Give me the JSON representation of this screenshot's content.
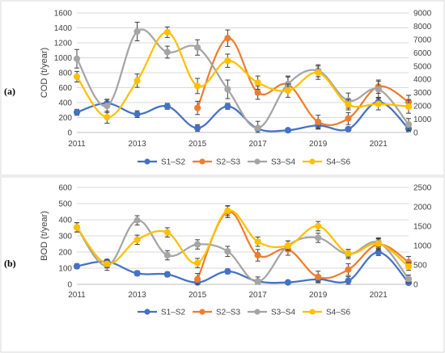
{
  "chart_data": [
    {
      "type": "line",
      "panel_label": "(a)",
      "ylabel": "COD (t/year)",
      "ylim_left": [
        0,
        1600
      ],
      "yticks_left": [
        0,
        200,
        400,
        600,
        800,
        1000,
        1200,
        1400,
        1600
      ],
      "ylim_right": [
        0,
        9000
      ],
      "yticks_right": [
        0,
        1000,
        2000,
        3000,
        4000,
        5000,
        6000,
        7000,
        8000,
        9000
      ],
      "x": [
        2011,
        2012,
        2013,
        2014,
        2015,
        2016,
        2017,
        2018,
        2019,
        2020,
        2021,
        2022
      ],
      "xticks": [
        2011,
        2013,
        2015,
        2017,
        2019,
        2021
      ],
      "grid": "horizontal",
      "legend_position": "bottom",
      "series": [
        {
          "name": "S1–S2",
          "color": "#4472C4",
          "axis": "left",
          "x": [
            2011,
            2012,
            2013,
            2014,
            2015,
            2016,
            2017,
            2018,
            2019,
            2020,
            2021,
            2022
          ],
          "values": [
            270,
            390,
            245,
            350,
            60,
            350,
            50,
            30,
            95,
            45,
            410,
            50
          ],
          "errors": [
            40,
            50,
            45,
            40,
            45,
            40,
            25,
            20,
            50,
            30,
            50,
            40
          ]
        },
        {
          "name": "S2–S3",
          "color": "#ED7D31",
          "axis": "right",
          "x": [
            2015,
            2016,
            2017,
            2018,
            2019,
            2020,
            2021,
            2022
          ],
          "values": [
            1850,
            7100,
            3000,
            3600,
            800,
            1050,
            3450,
            2300
          ],
          "errors": [
            500,
            620,
            500,
            580,
            500,
            450,
            500,
            500
          ]
        },
        {
          "name": "S3–S4",
          "color": "#A5A5A5",
          "axis": "right",
          "x": [
            2011,
            2012,
            2013,
            2014,
            2015,
            2016,
            2017,
            2018,
            2019,
            2020,
            2021,
            2022
          ],
          "values": [
            5550,
            2000,
            7600,
            6050,
            6400,
            3250,
            340,
            3650,
            4650,
            2400,
            3250,
            600
          ],
          "errors": [
            700,
            500,
            700,
            450,
            580,
            700,
            500,
            600,
            450,
            570,
            600,
            450
          ]
        },
        {
          "name": "S4–S6",
          "color": "#FFC000",
          "axis": "right",
          "x": [
            2011,
            2012,
            2013,
            2014,
            2015,
            2016,
            2017,
            2018,
            2019,
            2020,
            2021,
            2022
          ],
          "values": [
            4200,
            1150,
            3900,
            7550,
            3500,
            5400,
            3750,
            3150,
            4500,
            2100,
            2150,
            1950
          ],
          "errors": [
            400,
            450,
            500,
            400,
            570,
            500,
            500,
            500,
            500,
            400,
            450,
            500
          ]
        }
      ]
    },
    {
      "type": "line",
      "panel_label": "(b)",
      "ylabel": "BOD (t/year)",
      "ylim_left": [
        0,
        600
      ],
      "yticks_left": [
        0,
        100,
        200,
        300,
        400,
        500,
        600
      ],
      "ylim_right": [
        0,
        2500
      ],
      "yticks_right": [
        0,
        500,
        1000,
        1500,
        2000,
        2500
      ],
      "x": [
        2011,
        2012,
        2013,
        2014,
        2015,
        2016,
        2017,
        2018,
        2019,
        2020,
        2021,
        2022
      ],
      "xticks": [
        2011,
        2013,
        2015,
        2017,
        2019,
        2021
      ],
      "grid": "horizontal",
      "legend_position": "bottom",
      "series": [
        {
          "name": "S1–S2",
          "color": "#4472C4",
          "axis": "left",
          "x": [
            2011,
            2012,
            2013,
            2014,
            2015,
            2016,
            2017,
            2018,
            2019,
            2020,
            2021,
            2022
          ],
          "values": [
            112,
            140,
            68,
            62,
            12,
            80,
            18,
            12,
            32,
            22,
            198,
            10
          ],
          "errors": [
            15,
            15,
            15,
            15,
            12,
            15,
            12,
            10,
            18,
            25,
            20,
            10
          ]
        },
        {
          "name": "S2–S3",
          "color": "#ED7D31",
          "axis": "right",
          "x": [
            2015,
            2016,
            2017,
            2018,
            2019,
            2020,
            2021,
            2022
          ],
          "values": [
            130,
            1870,
            750,
            900,
            190,
            380,
            1030,
            570
          ],
          "errors": [
            150,
            150,
            150,
            150,
            150,
            150,
            150,
            150
          ]
        },
        {
          "name": "S3–S4",
          "color": "#A5A5A5",
          "axis": "right",
          "x": [
            2011,
            2012,
            2013,
            2014,
            2015,
            2016,
            2017,
            2018,
            2019,
            2020,
            2021,
            2022
          ],
          "values": [
            1470,
            480,
            1650,
            750,
            1030,
            850,
            70,
            1000,
            1200,
            780,
            1080,
            140
          ],
          "errors": [
            120,
            120,
            120,
            120,
            120,
            130,
            120,
            120,
            120,
            120,
            120,
            100
          ]
        },
        {
          "name": "S4–S6",
          "color": "#FFC000",
          "axis": "right",
          "x": [
            2011,
            2012,
            2013,
            2014,
            2015,
            2016,
            2017,
            2018,
            2019,
            2020,
            2021,
            2022
          ],
          "values": [
            1470,
            530,
            1150,
            1340,
            550,
            1900,
            1100,
            1000,
            1500,
            800,
            1050,
            460
          ],
          "errors": [
            120,
            100,
            120,
            120,
            120,
            130,
            120,
            120,
            120,
            100,
            120,
            100
          ]
        }
      ]
    }
  ]
}
